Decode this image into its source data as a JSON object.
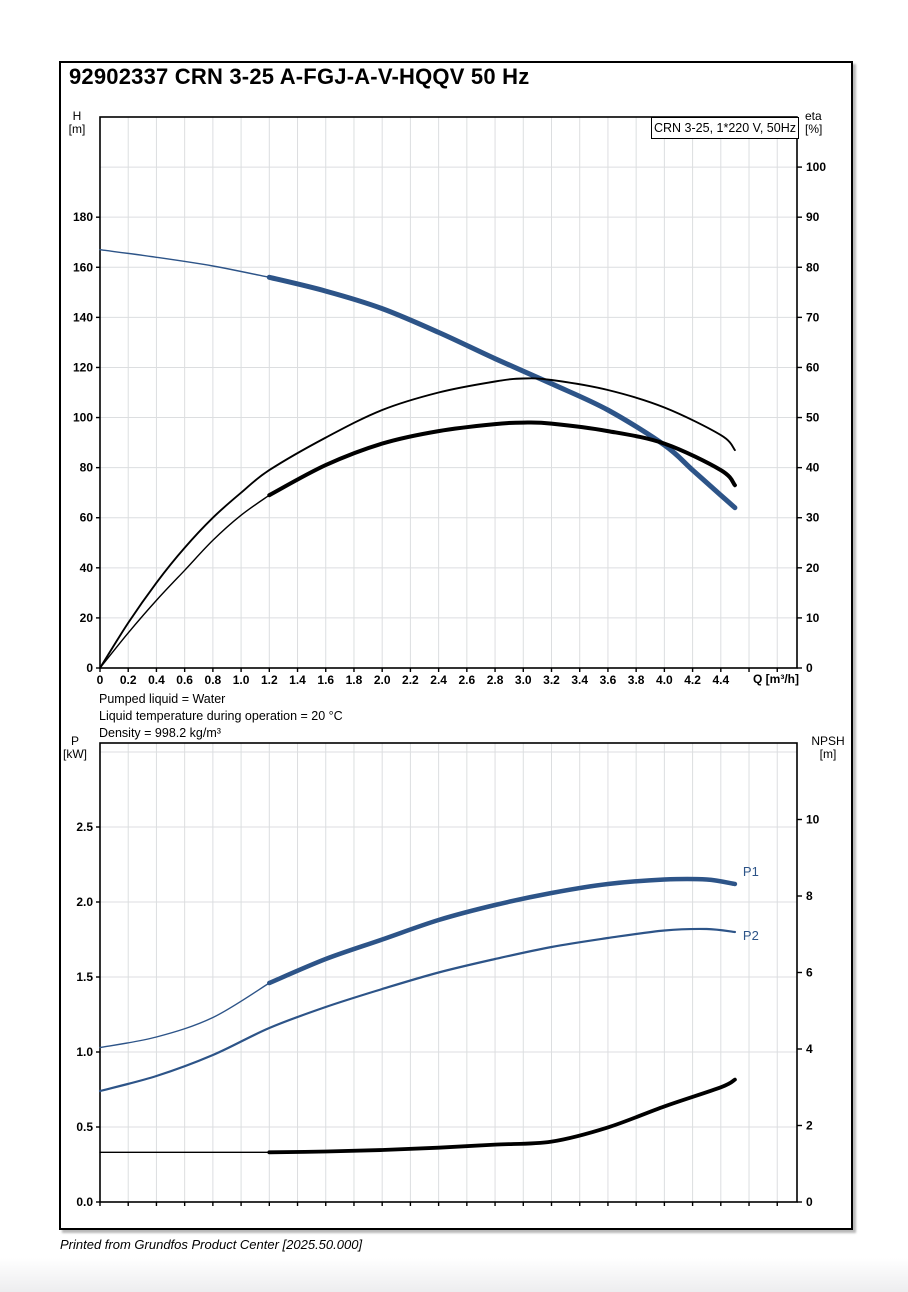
{
  "page": {
    "title": "92902337 CRN 3-25 A-FGJ-A-V-HQQV 50 Hz",
    "info_lines": [
      "Pumped liquid = Water",
      "Liquid temperature during operation = 20 °C",
      "Density = 998.2 kg/m³"
    ],
    "footer": "Printed from Grundfos Product Center [2025.50.000]"
  },
  "colors": {
    "curve_blue": "#2d5488",
    "curve_black": "#000000",
    "grid": "#dcdee0",
    "border": "#000000"
  },
  "chart_data": [
    {
      "type": "line",
      "name": "hq-eta-chart",
      "legend": "CRN 3-25, 1*220 V, 50Hz",
      "x_axis": {
        "label": "Q [m³/h]",
        "min": 0,
        "max": 4.94,
        "grid_step": 0.2,
        "label_max": 4.4,
        "show_labels": true
      },
      "left_axis": {
        "name": "H",
        "unit": "[m]",
        "min": 0,
        "max": 220,
        "step": 20,
        "label_max": 180,
        "decimals": 0
      },
      "right_axis": {
        "name": "eta",
        "unit": "[%]",
        "min": 0,
        "max": 110,
        "step": 10,
        "label_max": 100,
        "decimals": 0
      },
      "series": [
        {
          "name": "head-curve",
          "axis": "left",
          "color": "blue",
          "width": 5,
          "thin_width": 1.4,
          "thin_until": 1.2,
          "points": [
            [
              0,
              167
            ],
            [
              0.4,
              164
            ],
            [
              0.8,
              160.5
            ],
            [
              1.2,
              156
            ],
            [
              1.6,
              150.5
            ],
            [
              2.0,
              143.5
            ],
            [
              2.4,
              134
            ],
            [
              2.8,
              123.5
            ],
            [
              3.2,
              113.5
            ],
            [
              3.6,
              103
            ],
            [
              4.0,
              89
            ],
            [
              4.2,
              79
            ],
            [
              4.4,
              69
            ],
            [
              4.5,
              64
            ]
          ]
        },
        {
          "name": "eta-pump-curve",
          "axis": "right",
          "color": "black",
          "width": 1.9,
          "points": [
            [
              0,
              0
            ],
            [
              0.2,
              9
            ],
            [
              0.4,
              17
            ],
            [
              0.6,
              24
            ],
            [
              0.8,
              30
            ],
            [
              1.0,
              35
            ],
            [
              1.2,
              39.5
            ],
            [
              1.6,
              46
            ],
            [
              2.0,
              51.5
            ],
            [
              2.4,
              55
            ],
            [
              2.8,
              57.2
            ],
            [
              3.0,
              57.8
            ],
            [
              3.2,
              57.5
            ],
            [
              3.6,
              55.5
            ],
            [
              4.0,
              52
            ],
            [
              4.4,
              46.5
            ],
            [
              4.5,
              43.5
            ]
          ]
        },
        {
          "name": "eta-total-curve",
          "axis": "right",
          "color": "black",
          "width": 4,
          "thin_width": 1.4,
          "thin_until": 1.2,
          "points": [
            [
              0,
              0
            ],
            [
              0.2,
              7
            ],
            [
              0.4,
              13.5
            ],
            [
              0.6,
              19.5
            ],
            [
              0.8,
              25.5
            ],
            [
              1.0,
              30.5
            ],
            [
              1.2,
              34.5
            ],
            [
              1.6,
              40.5
            ],
            [
              2.0,
              44.8
            ],
            [
              2.4,
              47.3
            ],
            [
              2.8,
              48.7
            ],
            [
              3.0,
              49
            ],
            [
              3.2,
              48.8
            ],
            [
              3.6,
              47.3
            ],
            [
              4.0,
              44.8
            ],
            [
              4.4,
              39.5
            ],
            [
              4.5,
              36.5
            ]
          ]
        }
      ]
    },
    {
      "type": "line",
      "name": "power-npsh-chart",
      "x_axis": {
        "min": 0,
        "max": 4.94,
        "grid_step": 0.2,
        "label_max": 4.4,
        "show_labels": false
      },
      "left_axis": {
        "name": "P",
        "unit": "[kW]",
        "min": 0,
        "max": 3.06,
        "step": 0.5,
        "label_max": 2.5,
        "decimals": 1
      },
      "right_axis": {
        "name": "NPSH",
        "unit": "[m]",
        "min": 0,
        "max": 12,
        "step": 2,
        "label_max": 10,
        "decimals": 0
      },
      "series": [
        {
          "name": "p1-curve",
          "axis": "left",
          "color": "blue",
          "width": 4.5,
          "thin_width": 1.4,
          "thin_until": 1.2,
          "label": "P1",
          "label_dy": -8,
          "points": [
            [
              0,
              1.03
            ],
            [
              0.4,
              1.1
            ],
            [
              0.8,
              1.23
            ],
            [
              1.2,
              1.46
            ],
            [
              1.6,
              1.62
            ],
            [
              2.0,
              1.75
            ],
            [
              2.4,
              1.88
            ],
            [
              2.8,
              1.98
            ],
            [
              3.2,
              2.06
            ],
            [
              3.6,
              2.12
            ],
            [
              4.0,
              2.15
            ],
            [
              4.3,
              2.15
            ],
            [
              4.5,
              2.12
            ]
          ]
        },
        {
          "name": "p2-curve",
          "axis": "left",
          "color": "blue",
          "width": 2.2,
          "label": "P2",
          "label_dy": 8,
          "points": [
            [
              0,
              0.74
            ],
            [
              0.4,
              0.84
            ],
            [
              0.8,
              0.98
            ],
            [
              1.2,
              1.16
            ],
            [
              1.6,
              1.3
            ],
            [
              2.0,
              1.42
            ],
            [
              2.4,
              1.53
            ],
            [
              2.8,
              1.62
            ],
            [
              3.2,
              1.7
            ],
            [
              3.6,
              1.76
            ],
            [
              4.0,
              1.81
            ],
            [
              4.3,
              1.82
            ],
            [
              4.5,
              1.8
            ]
          ]
        },
        {
          "name": "npsh-curve",
          "axis": "right",
          "color": "black",
          "width": 3.8,
          "thin_width": 1.4,
          "thin_until": 1.2,
          "points": [
            [
              0,
              1.3
            ],
            [
              0.8,
              1.3
            ],
            [
              1.2,
              1.3
            ],
            [
              1.6,
              1.32
            ],
            [
              2.0,
              1.36
            ],
            [
              2.4,
              1.42
            ],
            [
              2.8,
              1.5
            ],
            [
              3.2,
              1.58
            ],
            [
              3.6,
              1.95
            ],
            [
              4.0,
              2.5
            ],
            [
              4.4,
              3.0
            ],
            [
              4.5,
              3.2
            ]
          ]
        }
      ]
    }
  ]
}
